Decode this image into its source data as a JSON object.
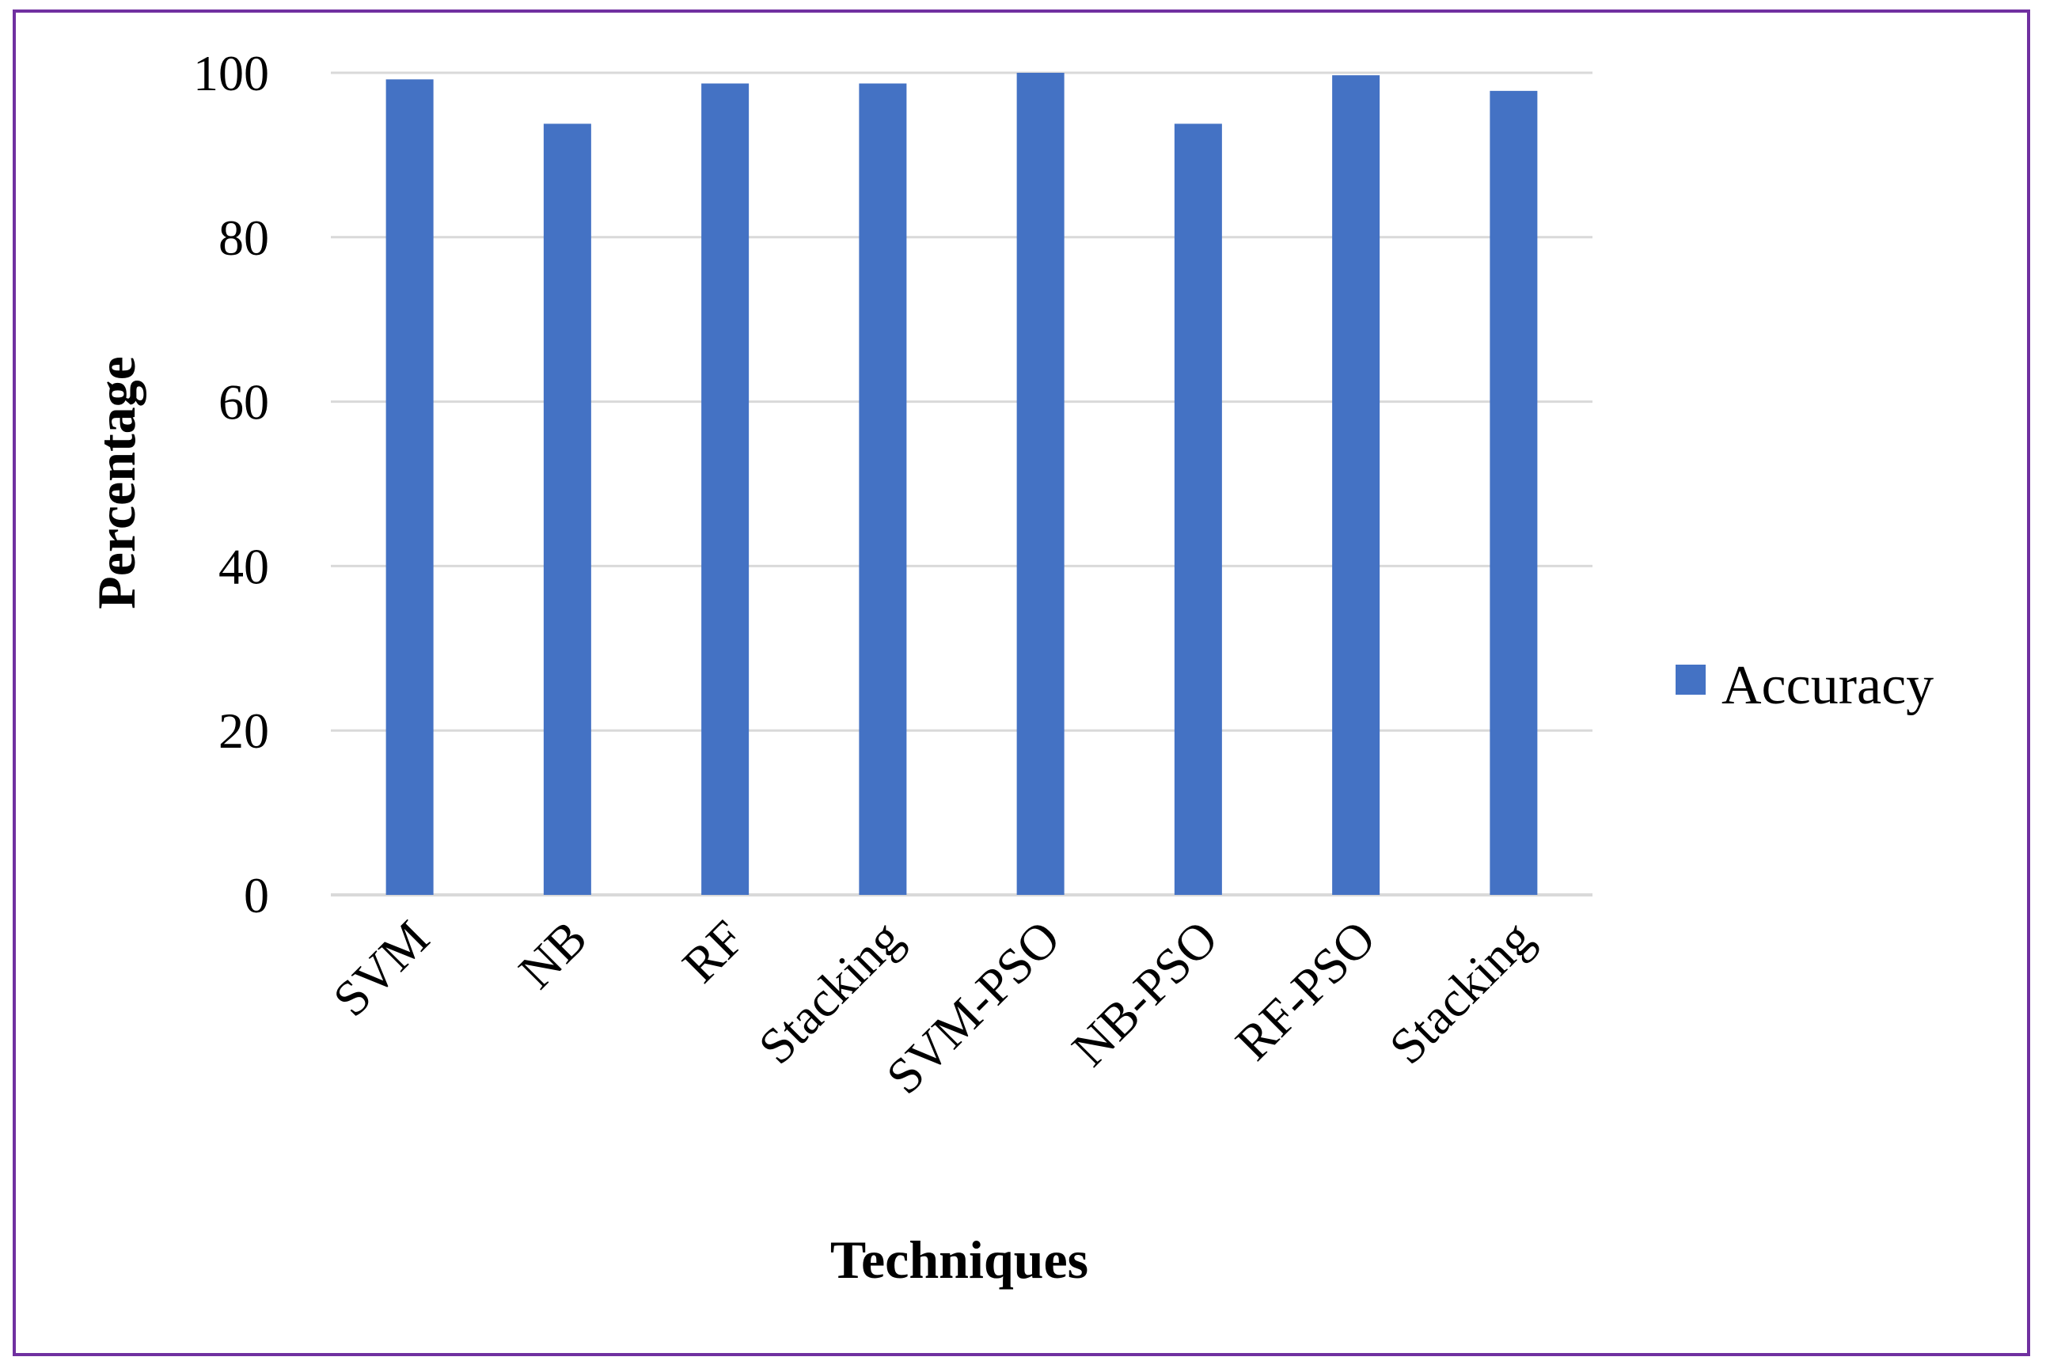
{
  "chart_data": {
    "type": "bar",
    "categories": [
      "SVM",
      "NB",
      "RF",
      "Stacking",
      "SVM-PSO",
      "NB-PSO",
      "RF-PSO",
      "Stacking"
    ],
    "series": [
      {
        "name": "Accuracy",
        "color": "#4472c4",
        "values": [
          99.2,
          93.8,
          98.7,
          98.7,
          100,
          93.8,
          99.7,
          97.8
        ]
      }
    ],
    "xlabel": "Techniques",
    "ylabel": "Percentage",
    "ylim": [
      0,
      100
    ],
    "yticks": [
      0,
      20,
      40,
      60,
      80,
      100
    ],
    "grid": true,
    "legend_position": "right",
    "border_color": "#7030a0",
    "gridline_color": "#d9d9d9"
  }
}
